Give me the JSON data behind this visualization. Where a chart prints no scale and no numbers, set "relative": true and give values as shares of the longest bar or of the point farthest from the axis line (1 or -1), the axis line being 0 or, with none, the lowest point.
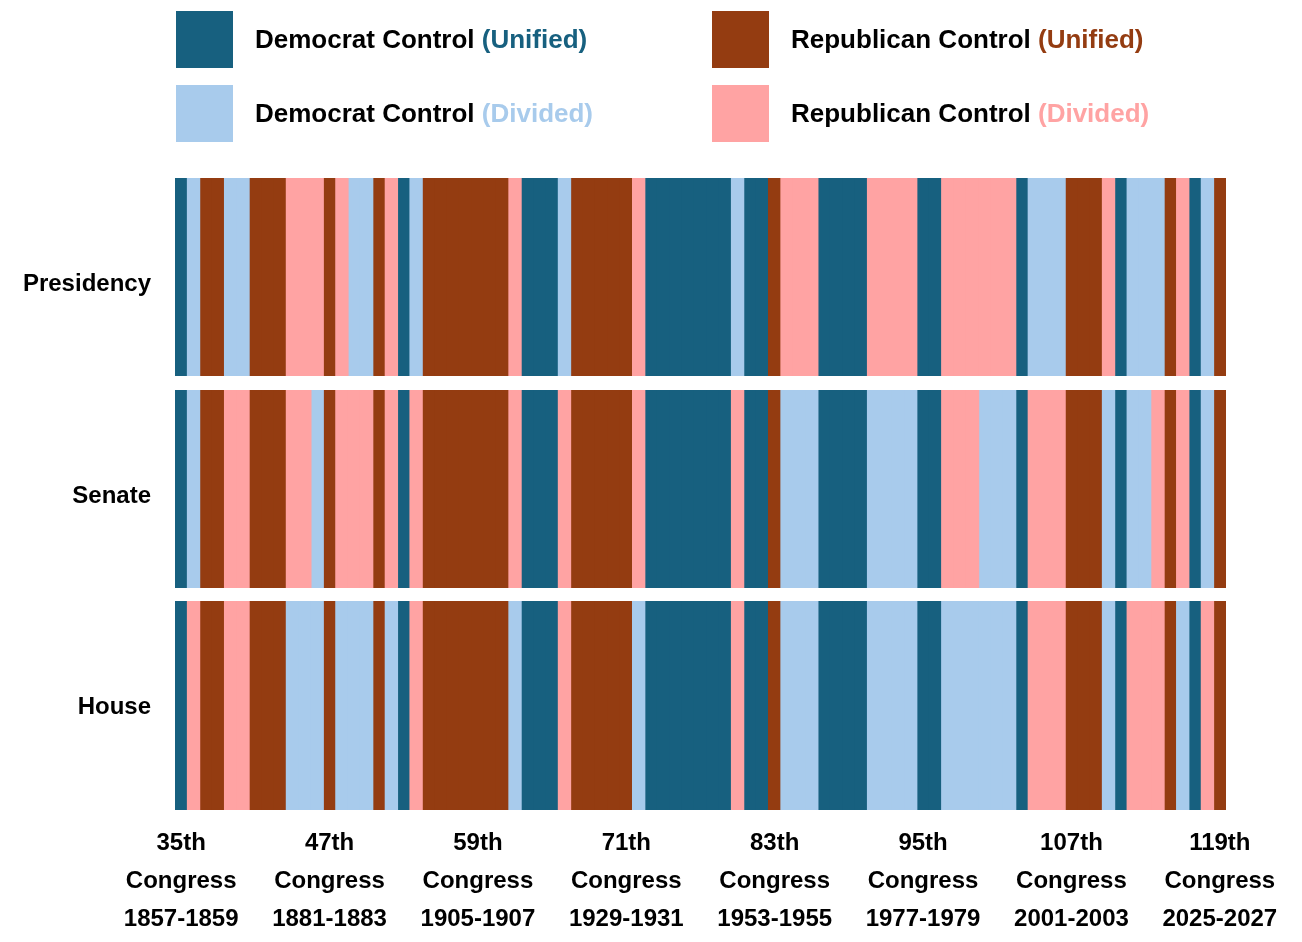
{
  "chart_data": [
    {
      "type": "bar",
      "relative": true,
      "stacked": true,
      "ylabel": "Presidency",
      "legend": "top",
      "categories": [
        null,
        null,
        null,
        null,
        null,
        null,
        null,
        null,
        null,
        null,
        null,
        null,
        null,
        null,
        null,
        null,
        null,
        null,
        null,
        null,
        null,
        null,
        null,
        null,
        null,
        null,
        null,
        null,
        null,
        null,
        null,
        null,
        null,
        null,
        null,
        null,
        null,
        null,
        null,
        null,
        null,
        null,
        null,
        null,
        null,
        null,
        null,
        null,
        null,
        null,
        null,
        null,
        null,
        null,
        null,
        null,
        null,
        null,
        null,
        null,
        null,
        null,
        null,
        null,
        null,
        null,
        null,
        null,
        null,
        null,
        null,
        null,
        null,
        null,
        null,
        null,
        null,
        null,
        null,
        null,
        null,
        null,
        null,
        null,
        null
      ],
      "series": [
        {
          "name": "Democrat Control (Unified)",
          "color": "#17607f",
          "values": [
            1,
            null,
            null,
            null,
            null,
            null,
            null,
            null,
            null,
            null,
            null,
            null,
            null,
            null,
            null,
            null,
            null,
            null,
            1,
            null,
            null,
            null,
            null,
            null,
            null,
            null,
            null,
            null,
            1,
            1,
            1,
            null,
            null,
            null,
            null,
            null,
            null,
            null,
            1,
            1,
            1,
            1,
            1,
            1,
            1,
            null,
            1,
            1,
            null,
            null,
            null,
            null,
            1,
            1,
            1,
            1,
            null,
            null,
            null,
            null,
            1,
            1,
            null,
            null,
            null,
            null,
            null,
            null,
            1,
            null,
            null,
            null,
            null,
            null,
            null,
            null,
            1,
            null,
            null,
            null,
            null,
            null,
            1,
            null,
            null
          ]
        },
        {
          "name": "Republican Control (Unified)",
          "color": "#943c11",
          "values": [
            null,
            null,
            1,
            1,
            null,
            null,
            1,
            1,
            1,
            null,
            null,
            null,
            1,
            null,
            null,
            null,
            1,
            null,
            null,
            null,
            1,
            1,
            1,
            1,
            1,
            1,
            1,
            null,
            null,
            null,
            null,
            null,
            1,
            1,
            1,
            1,
            1,
            null,
            null,
            null,
            null,
            null,
            null,
            null,
            null,
            null,
            null,
            null,
            1,
            null,
            null,
            null,
            null,
            null,
            null,
            null,
            null,
            null,
            null,
            null,
            null,
            null,
            null,
            null,
            null,
            null,
            null,
            null,
            null,
            null,
            null,
            null,
            1,
            1,
            1,
            null,
            null,
            null,
            null,
            null,
            1,
            null,
            null,
            null,
            1
          ]
        },
        {
          "name": "Democrat Control (Divided)",
          "color": "#a8cbec",
          "values": [
            null,
            1,
            null,
            null,
            1,
            1,
            null,
            null,
            null,
            null,
            null,
            null,
            null,
            null,
            1,
            1,
            null,
            null,
            null,
            1,
            null,
            null,
            null,
            null,
            null,
            null,
            null,
            null,
            null,
            null,
            null,
            1,
            null,
            null,
            null,
            null,
            null,
            null,
            null,
            null,
            null,
            null,
            null,
            null,
            null,
            1,
            null,
            null,
            null,
            null,
            null,
            null,
            null,
            null,
            null,
            null,
            null,
            null,
            null,
            null,
            null,
            null,
            null,
            null,
            null,
            null,
            null,
            null,
            null,
            1,
            1,
            1,
            null,
            null,
            null,
            null,
            null,
            1,
            1,
            1,
            null,
            null,
            null,
            1,
            null
          ]
        },
        {
          "name": "Republican Control (Divided)",
          "color": "#ffa3a3",
          "values": [
            null,
            null,
            null,
            null,
            null,
            null,
            null,
            null,
            null,
            1,
            1,
            1,
            null,
            1,
            null,
            null,
            null,
            1,
            null,
            null,
            null,
            null,
            null,
            null,
            null,
            null,
            null,
            1,
            null,
            null,
            null,
            null,
            null,
            null,
            null,
            null,
            null,
            1,
            null,
            null,
            null,
            null,
            null,
            null,
            null,
            null,
            null,
            null,
            null,
            1,
            1,
            1,
            null,
            null,
            null,
            null,
            1,
            1,
            1,
            1,
            null,
            null,
            1,
            1,
            1,
            1,
            1,
            1,
            null,
            null,
            null,
            null,
            null,
            null,
            null,
            1,
            null,
            null,
            null,
            null,
            null,
            1,
            null,
            null,
            null
          ]
        }
      ]
    },
    {
      "type": "bar",
      "relative": true,
      "stacked": true,
      "ylabel": "Senate",
      "categories": [
        null,
        null,
        null,
        null,
        null,
        null,
        null,
        null,
        null,
        null,
        null,
        null,
        null,
        null,
        null,
        null,
        null,
        null,
        null,
        null,
        null,
        null,
        null,
        null,
        null,
        null,
        null,
        null,
        null,
        null,
        null,
        null,
        null,
        null,
        null,
        null,
        null,
        null,
        null,
        null,
        null,
        null,
        null,
        null,
        null,
        null,
        null,
        null,
        null,
        null,
        null,
        null,
        null,
        null,
        null,
        null,
        null,
        null,
        null,
        null,
        null,
        null,
        null,
        null,
        null,
        null,
        null,
        null,
        null,
        null,
        null,
        null,
        null,
        null,
        null,
        null,
        null,
        null,
        null,
        null,
        null,
        null,
        null,
        null,
        null
      ],
      "series": [
        {
          "color": "#17607f",
          "values": [
            1,
            null,
            null,
            null,
            null,
            null,
            null,
            null,
            null,
            null,
            null,
            null,
            null,
            null,
            null,
            null,
            null,
            null,
            1,
            null,
            null,
            null,
            null,
            null,
            null,
            null,
            null,
            null,
            1,
            1,
            1,
            null,
            null,
            null,
            null,
            null,
            null,
            null,
            1,
            1,
            1,
            1,
            1,
            1,
            1,
            null,
            1,
            1,
            null,
            null,
            null,
            null,
            1,
            1,
            1,
            1,
            null,
            null,
            null,
            null,
            1,
            1,
            null,
            null,
            null,
            null,
            null,
            null,
            1,
            null,
            null,
            null,
            null,
            null,
            null,
            null,
            1,
            null,
            null,
            null,
            null,
            null,
            1,
            null,
            null
          ]
        },
        {
          "color": "#943c11",
          "values": [
            null,
            null,
            1,
            1,
            null,
            null,
            1,
            1,
            1,
            null,
            null,
            null,
            1,
            null,
            null,
            null,
            1,
            null,
            null,
            null,
            1,
            1,
            1,
            1,
            1,
            1,
            1,
            null,
            null,
            null,
            null,
            null,
            1,
            1,
            1,
            1,
            1,
            null,
            null,
            null,
            null,
            null,
            null,
            null,
            null,
            null,
            null,
            null,
            1,
            null,
            null,
            null,
            null,
            null,
            null,
            null,
            null,
            null,
            null,
            null,
            null,
            null,
            null,
            null,
            null,
            null,
            null,
            null,
            null,
            null,
            null,
            null,
            1,
            1,
            1,
            null,
            null,
            null,
            null,
            null,
            1,
            null,
            null,
            null,
            1
          ]
        },
        {
          "color": "#a8cbec",
          "values": [
            null,
            1,
            null,
            null,
            null,
            null,
            null,
            null,
            null,
            null,
            null,
            1,
            null,
            null,
            null,
            null,
            null,
            null,
            null,
            null,
            null,
            null,
            null,
            null,
            null,
            null,
            null,
            null,
            null,
            null,
            null,
            null,
            null,
            null,
            null,
            null,
            null,
            null,
            null,
            null,
            null,
            null,
            null,
            null,
            null,
            null,
            null,
            null,
            null,
            1,
            1,
            1,
            null,
            null,
            null,
            null,
            1,
            1,
            1,
            1,
            null,
            null,
            null,
            null,
            null,
            1,
            1,
            1,
            null,
            null,
            null,
            null,
            null,
            null,
            null,
            1,
            null,
            1,
            1,
            null,
            null,
            null,
            null,
            1,
            null
          ]
        },
        {
          "color": "#ffa3a3",
          "values": [
            null,
            null,
            null,
            null,
            1,
            1,
            null,
            null,
            null,
            1,
            1,
            null,
            null,
            1,
            1,
            1,
            null,
            1,
            null,
            1,
            null,
            null,
            null,
            null,
            null,
            null,
            null,
            1,
            null,
            null,
            null,
            1,
            null,
            null,
            null,
            null,
            null,
            1,
            null,
            null,
            null,
            null,
            null,
            null,
            null,
            1,
            null,
            null,
            null,
            null,
            null,
            null,
            null,
            null,
            null,
            null,
            null,
            null,
            null,
            null,
            null,
            null,
            1,
            1,
            1,
            null,
            null,
            null,
            null,
            1,
            1,
            1,
            null,
            null,
            null,
            null,
            null,
            null,
            null,
            1,
            null,
            1,
            null,
            null,
            null
          ]
        }
      ]
    },
    {
      "type": "bar",
      "relative": true,
      "stacked": true,
      "ylabel": "House",
      "categories": [
        "35th Congress 1857-1859",
        null,
        null,
        null,
        null,
        null,
        null,
        null,
        null,
        null,
        null,
        null,
        "47th Congress 1881-1883",
        null,
        null,
        null,
        null,
        null,
        null,
        null,
        null,
        null,
        null,
        null,
        "59th Congress 1905-1907",
        null,
        null,
        null,
        null,
        null,
        null,
        null,
        null,
        null,
        null,
        null,
        "71th Congress 1929-1931",
        null,
        null,
        null,
        null,
        null,
        null,
        null,
        null,
        null,
        null,
        null,
        "83th Congress 1953-1955",
        null,
        null,
        null,
        null,
        null,
        null,
        null,
        null,
        null,
        null,
        null,
        "95th Congress 1977-1979",
        null,
        null,
        null,
        null,
        null,
        null,
        null,
        null,
        null,
        null,
        null,
        "107th Congress 2001-2003",
        null,
        null,
        null,
        null,
        null,
        null,
        null,
        null,
        null,
        null,
        null,
        "119th Congress 2025-2027"
      ],
      "series": [
        {
          "color": "#17607f",
          "values": [
            1,
            null,
            null,
            null,
            null,
            null,
            null,
            null,
            null,
            null,
            null,
            null,
            null,
            null,
            null,
            null,
            null,
            null,
            1,
            null,
            null,
            null,
            null,
            null,
            null,
            null,
            null,
            null,
            1,
            1,
            1,
            null,
            null,
            null,
            null,
            null,
            null,
            null,
            1,
            1,
            1,
            1,
            1,
            1,
            1,
            null,
            1,
            1,
            null,
            null,
            null,
            null,
            1,
            1,
            1,
            1,
            null,
            null,
            null,
            null,
            1,
            1,
            null,
            null,
            null,
            null,
            null,
            null,
            1,
            null,
            null,
            null,
            null,
            null,
            null,
            null,
            1,
            null,
            null,
            null,
            null,
            null,
            1,
            null,
            null
          ]
        },
        {
          "color": "#943c11",
          "values": [
            null,
            null,
            1,
            1,
            null,
            null,
            1,
            1,
            1,
            null,
            null,
            null,
            1,
            null,
            null,
            null,
            1,
            null,
            null,
            null,
            1,
            1,
            1,
            1,
            1,
            1,
            1,
            null,
            null,
            null,
            null,
            null,
            1,
            1,
            1,
            1,
            1,
            null,
            null,
            null,
            null,
            null,
            null,
            null,
            null,
            null,
            null,
            null,
            1,
            null,
            null,
            null,
            null,
            null,
            null,
            null,
            null,
            null,
            null,
            null,
            null,
            null,
            null,
            null,
            null,
            null,
            null,
            null,
            null,
            null,
            null,
            null,
            1,
            1,
            1,
            null,
            null,
            null,
            null,
            null,
            1,
            null,
            null,
            null,
            1
          ]
        },
        {
          "color": "#a8cbec",
          "values": [
            null,
            null,
            null,
            null,
            null,
            null,
            null,
            null,
            null,
            1,
            1,
            1,
            null,
            1,
            1,
            1,
            null,
            1,
            null,
            null,
            null,
            null,
            null,
            null,
            null,
            null,
            null,
            1,
            null,
            null,
            null,
            null,
            null,
            null,
            null,
            null,
            null,
            1,
            null,
            null,
            null,
            null,
            null,
            null,
            null,
            null,
            null,
            null,
            null,
            1,
            1,
            1,
            null,
            null,
            null,
            null,
            1,
            1,
            1,
            1,
            null,
            null,
            1,
            1,
            1,
            1,
            1,
            1,
            null,
            null,
            null,
            null,
            null,
            null,
            null,
            1,
            null,
            null,
            null,
            null,
            null,
            1,
            null,
            null,
            null
          ]
        },
        {
          "color": "#ffa3a3",
          "values": [
            null,
            1,
            null,
            null,
            1,
            1,
            null,
            null,
            null,
            null,
            null,
            null,
            null,
            null,
            null,
            null,
            null,
            null,
            null,
            1,
            null,
            null,
            null,
            null,
            null,
            null,
            null,
            null,
            null,
            null,
            null,
            1,
            null,
            null,
            null,
            null,
            null,
            null,
            null,
            null,
            null,
            null,
            null,
            null,
            null,
            1,
            null,
            null,
            null,
            null,
            null,
            null,
            null,
            null,
            null,
            null,
            null,
            null,
            null,
            null,
            null,
            null,
            null,
            null,
            null,
            null,
            null,
            null,
            null,
            1,
            1,
            1,
            null,
            null,
            null,
            null,
            null,
            1,
            1,
            1,
            null,
            null,
            null,
            1,
            null
          ]
        }
      ]
    }
  ]
}
